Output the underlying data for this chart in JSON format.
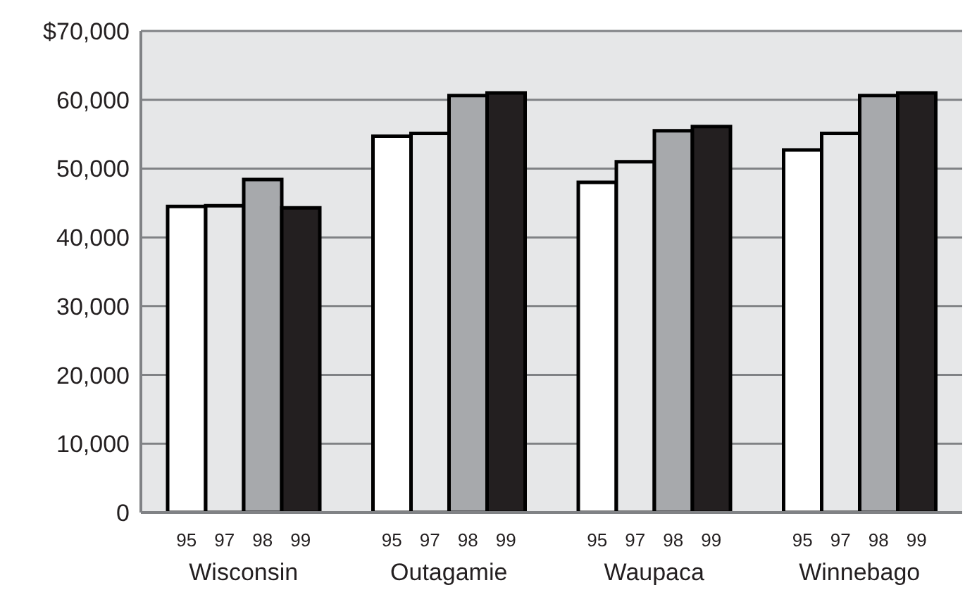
{
  "chart_data": {
    "type": "bar",
    "categories": [
      "Wisconsin",
      "Outagamie",
      "Waupaca",
      "Winnebago"
    ],
    "series": [
      {
        "name": "95",
        "color": "#ffffff",
        "values": [
          44500,
          54700,
          48000,
          52700
        ]
      },
      {
        "name": "97",
        "color": "#e6e7e8",
        "values": [
          44600,
          55100,
          51000,
          55100
        ]
      },
      {
        "name": "98",
        "color": "#a7a9ac",
        "values": [
          48400,
          60600,
          55500,
          60600
        ]
      },
      {
        "name": "99",
        "color": "#231f20",
        "values": [
          44300,
          61000,
          56100,
          61000
        ]
      }
    ],
    "ylim": [
      0,
      70000
    ],
    "yticks": [
      0,
      {
        "value": 10000,
        "label": "10,000"
      },
      {
        "value": 20000,
        "label": "20,000"
      },
      {
        "value": 30000,
        "label": "30,000"
      },
      {
        "value": 40000,
        "label": "40,000"
      },
      {
        "value": 50000,
        "label": "50,000"
      },
      {
        "value": 60000,
        "label": "60,000"
      },
      {
        "value": 70000,
        "label": "$70,000"
      }
    ],
    "grid": "y"
  }
}
